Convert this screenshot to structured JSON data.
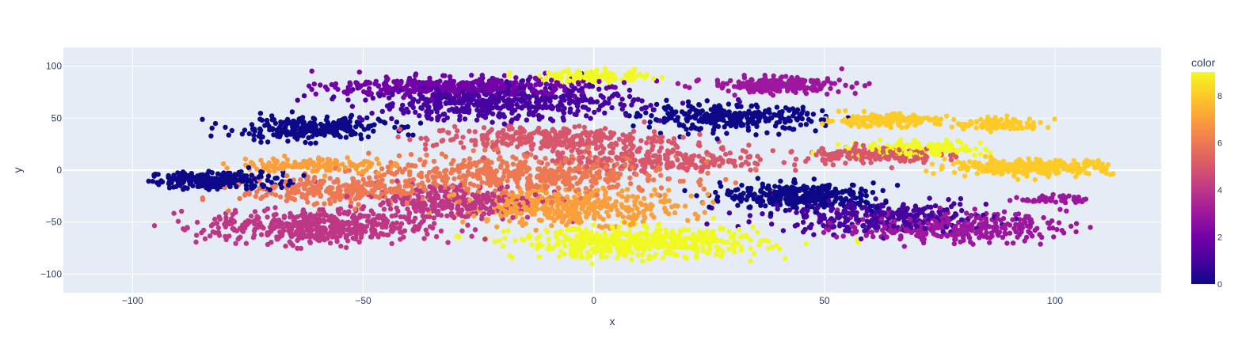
{
  "chart_data": {
    "type": "scatter",
    "xlabel": "x",
    "ylabel": "y",
    "xlim": [
      -115,
      123
    ],
    "ylim": [
      -118,
      118
    ],
    "x_ticks": [
      -100,
      -50,
      0,
      50,
      100
    ],
    "x_tick_labels": [
      "−100",
      "−50",
      "0",
      "50",
      "100"
    ],
    "y_ticks": [
      -100,
      -50,
      0,
      50,
      100
    ],
    "y_tick_labels": [
      "−100",
      "−50",
      "0",
      "50",
      "100"
    ],
    "grid": true,
    "plot_background": "#e5ecf6",
    "grid_color": "#ffffff",
    "colorbar": {
      "title": "color",
      "range": [
        0,
        9
      ],
      "ticks": [
        0,
        2,
        4,
        6,
        8
      ],
      "tick_labels": [
        "0",
        "2",
        "4",
        "6",
        "8"
      ],
      "colorscale": [
        "#0d0887",
        "#46039f",
        "#7201a8",
        "#9c179e",
        "#bd3786",
        "#d8576b",
        "#ed7953",
        "#fb9f3a",
        "#fdca26",
        "#f0f921"
      ],
      "placement": "right"
    },
    "clusters": [
      {
        "color_value": 0,
        "center": [
          -82,
          -10
        ],
        "spread": [
          12,
          7
        ],
        "approx_points": 700
      },
      {
        "color_value": 0,
        "center": [
          -62,
          40
        ],
        "spread": [
          14,
          9
        ],
        "approx_points": 800
      },
      {
        "color_value": 0,
        "center": [
          30,
          50
        ],
        "spread": [
          16,
          10
        ],
        "approx_points": 900
      },
      {
        "color_value": 0,
        "center": [
          45,
          -25
        ],
        "spread": [
          14,
          10
        ],
        "approx_points": 1000
      },
      {
        "color_value": 1,
        "center": [
          -20,
          65
        ],
        "spread": [
          24,
          14
        ],
        "approx_points": 1500
      },
      {
        "color_value": 1,
        "center": [
          62,
          -45
        ],
        "spread": [
          20,
          12
        ],
        "approx_points": 900
      },
      {
        "color_value": 2,
        "center": [
          -30,
          80
        ],
        "spread": [
          22,
          8
        ],
        "approx_points": 1200
      },
      {
        "color_value": 3,
        "center": [
          40,
          82
        ],
        "spread": [
          12,
          6
        ],
        "approx_points": 700
      },
      {
        "color_value": 3,
        "center": [
          78,
          -55
        ],
        "spread": [
          20,
          12
        ],
        "approx_points": 900
      },
      {
        "color_value": 3,
        "center": [
          100,
          -28
        ],
        "spread": [
          6,
          3
        ],
        "approx_points": 150
      },
      {
        "color_value": 4,
        "center": [
          -60,
          -55
        ],
        "spread": [
          20,
          14
        ],
        "approx_points": 1500
      },
      {
        "color_value": 4,
        "center": [
          -30,
          -30
        ],
        "spread": [
          15,
          15
        ],
        "approx_points": 900
      },
      {
        "color_value": 5,
        "center": [
          -10,
          30
        ],
        "spread": [
          22,
          10
        ],
        "approx_points": 900
      },
      {
        "color_value": 5,
        "center": [
          15,
          10
        ],
        "spread": [
          20,
          10
        ],
        "approx_points": 700
      },
      {
        "color_value": 5,
        "center": [
          60,
          15
        ],
        "spread": [
          12,
          7
        ],
        "approx_points": 500
      },
      {
        "color_value": 6,
        "center": [
          -15,
          -5
        ],
        "spread": [
          28,
          16
        ],
        "approx_points": 1500
      },
      {
        "color_value": 6,
        "center": [
          -55,
          -20
        ],
        "spread": [
          18,
          12
        ],
        "approx_points": 800
      },
      {
        "color_value": 7,
        "center": [
          -5,
          -35
        ],
        "spread": [
          20,
          14
        ],
        "approx_points": 1200
      },
      {
        "color_value": 7,
        "center": [
          -60,
          5
        ],
        "spread": [
          14,
          6
        ],
        "approx_points": 400
      },
      {
        "color_value": 8,
        "center": [
          62,
          48
        ],
        "spread": [
          10,
          5
        ],
        "approx_points": 500
      },
      {
        "color_value": 8,
        "center": [
          95,
          3
        ],
        "spread": [
          15,
          6
        ],
        "approx_points": 900
      },
      {
        "color_value": 8,
        "center": [
          88,
          44
        ],
        "spread": [
          8,
          5
        ],
        "approx_points": 300
      },
      {
        "color_value": 9,
        "center": [
          10,
          -70
        ],
        "spread": [
          22,
          12
        ],
        "approx_points": 1500
      },
      {
        "color_value": 9,
        "center": [
          0,
          90
        ],
        "spread": [
          10,
          5
        ],
        "approx_points": 400
      },
      {
        "color_value": 9,
        "center": [
          70,
          20
        ],
        "spread": [
          12,
          6
        ],
        "approx_points": 500
      }
    ]
  }
}
